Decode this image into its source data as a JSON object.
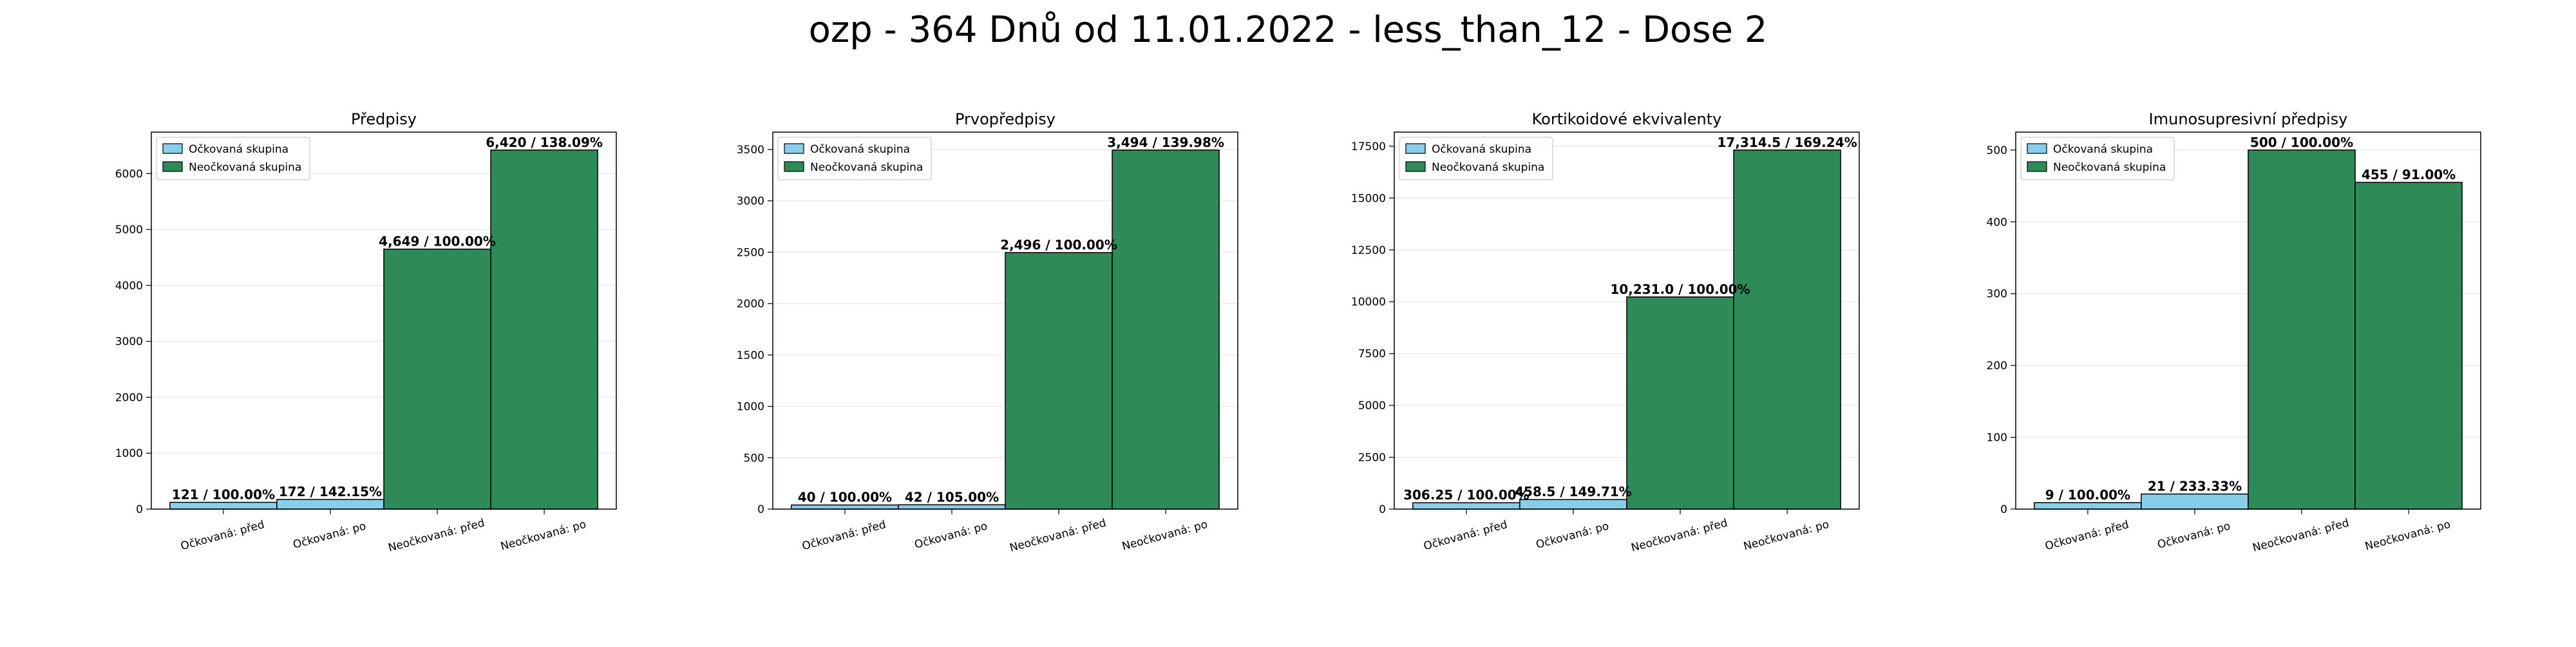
{
  "figure": {
    "title": "ozp - 364 Dnů od 11.01.2022 - less_than_12 - Dose 2"
  },
  "colors": {
    "vaccinated": "#87ceeb",
    "unvaccinated": "#2e8b57",
    "edge": "#000000"
  },
  "chart_data": [
    {
      "type": "bar",
      "title": "Předpisy",
      "categories": [
        "Očkovaná: před",
        "Očkovaná: po",
        "Neočkovaná: před",
        "Neočkovaná: po"
      ],
      "values": [
        121,
        172,
        4649,
        6420
      ],
      "bar_series": [
        "Očkovaná skupina",
        "Očkovaná skupina",
        "Neočkovaná skupina",
        "Neočkovaná skupina"
      ],
      "data_labels": [
        "121 / 100.00%",
        "172 / 142.15%",
        "4,649 / 100.00%",
        "6,420 / 138.09%"
      ],
      "ylim": [
        0,
        6741
      ],
      "yticks": [
        0,
        1000,
        2000,
        3000,
        4000,
        5000,
        6000
      ],
      "ytick_labels": [
        "0",
        "1000",
        "2000",
        "3000",
        "4000",
        "5000",
        "6000"
      ],
      "legend": [
        "Očkovaná skupina",
        "Neočkovaná skupina"
      ],
      "legend_position": "upper-left",
      "grid": true
    },
    {
      "type": "bar",
      "title": "Prvopředpisy",
      "categories": [
        "Očkovaná: před",
        "Očkovaná: po",
        "Neočkovaná: před",
        "Neočkovaná: po"
      ],
      "values": [
        40,
        42,
        2496,
        3494
      ],
      "bar_series": [
        "Očkovaná skupina",
        "Očkovaná skupina",
        "Neočkovaná skupina",
        "Neočkovaná skupina"
      ],
      "data_labels": [
        "40 / 100.00%",
        "42 / 105.00%",
        "2,496 / 100.00%",
        "3,494 / 139.98%"
      ],
      "ylim": [
        0,
        3669
      ],
      "yticks": [
        0,
        500,
        1000,
        1500,
        2000,
        2500,
        3000,
        3500
      ],
      "ytick_labels": [
        "0",
        "500",
        "1000",
        "1500",
        "2000",
        "2500",
        "3000",
        "3500"
      ],
      "legend": [
        "Očkovaná skupina",
        "Neočkovaná skupina"
      ],
      "legend_position": "upper-left",
      "grid": true
    },
    {
      "type": "bar",
      "title": "Kortikoidové ekvivalenty",
      "categories": [
        "Očkovaná: před",
        "Očkovaná: po",
        "Neočkovaná: před",
        "Neočkovaná: po"
      ],
      "values": [
        306.25,
        458.5,
        10231.0,
        17314.5
      ],
      "bar_series": [
        "Očkovaná skupina",
        "Očkovaná skupina",
        "Neočkovaná skupina",
        "Neočkovaná skupina"
      ],
      "data_labels": [
        "306.25 / 100.00%",
        "458.5 / 149.71%",
        "10,231.0 / 100.00%",
        "17,314.5 / 169.24%"
      ],
      "ylim": [
        0,
        18180
      ],
      "yticks": [
        0,
        2500,
        5000,
        7500,
        10000,
        12500,
        15000,
        17500
      ],
      "ytick_labels": [
        "0",
        "2500",
        "5000",
        "7500",
        "10000",
        "12500",
        "15000",
        "17500"
      ],
      "legend": [
        "Očkovaná skupina",
        "Neočkovaná skupina"
      ],
      "legend_position": "upper-left",
      "grid": true
    },
    {
      "type": "bar",
      "title": "Imunosupresivní předpisy",
      "categories": [
        "Očkovaná: před",
        "Očkovaná: po",
        "Neočkovaná: před",
        "Neočkovaná: po"
      ],
      "values": [
        9,
        21,
        500,
        455
      ],
      "bar_series": [
        "Očkovaná skupina",
        "Očkovaná skupina",
        "Neočkovaná skupina",
        "Neočkovaná skupina"
      ],
      "data_labels": [
        "9 / 100.00%",
        "21 / 233.33%",
        "500 / 100.00%",
        "455 / 91.00%"
      ],
      "ylim": [
        0,
        525
      ],
      "yticks": [
        0,
        100,
        200,
        300,
        400,
        500
      ],
      "ytick_labels": [
        "0",
        "100",
        "200",
        "300",
        "400",
        "500"
      ],
      "legend": [
        "Očkovaná skupina",
        "Neočkovaná skupina"
      ],
      "legend_position": "upper-left",
      "grid": true
    }
  ]
}
